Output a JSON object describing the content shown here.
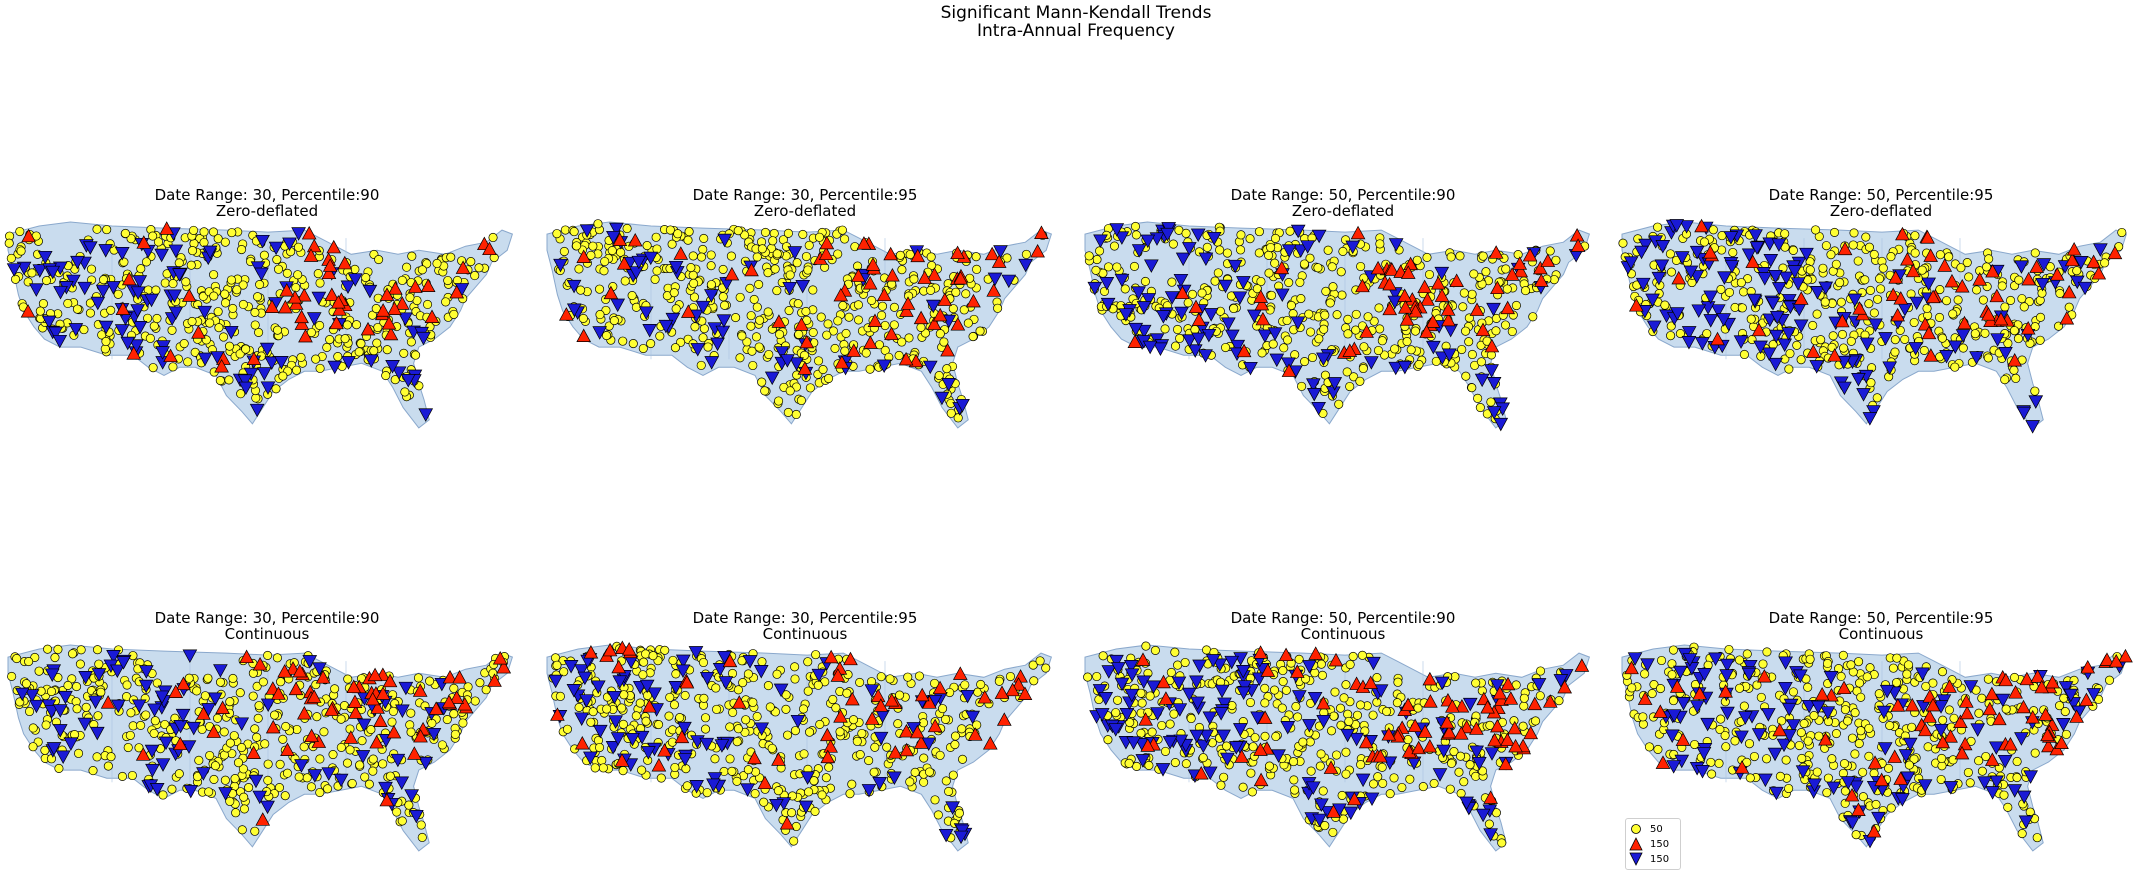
{
  "figure": {
    "title_line1": "Significant Mann-Kendall Trends",
    "title_line2": "Intra-Annual Frequency"
  },
  "colors": {
    "land_fill": "#c9dcee",
    "land_edge": "#8aa8cc",
    "no_trend": "#ffff33",
    "increasing": "#ff2200",
    "decreasing": "#1a1ad6",
    "marker_edge": "#000000"
  },
  "panels": [
    {
      "id": "dr30-p90-zd",
      "title_line1": "Date Range: 30, Percentile:90",
      "title_line2": "Zero-deflated",
      "seed": 11,
      "blue_share": 0.22,
      "red_share": 0.18
    },
    {
      "id": "dr30-p95-zd",
      "title_line1": "Date Range: 30, Percentile:95",
      "title_line2": "Zero-deflated",
      "seed": 23,
      "blue_share": 0.2,
      "red_share": 0.2
    },
    {
      "id": "dr50-p90-zd",
      "title_line1": "Date Range: 50, Percentile:90",
      "title_line2": "Zero-deflated",
      "seed": 37,
      "blue_share": 0.3,
      "red_share": 0.22
    },
    {
      "id": "dr50-p95-zd",
      "title_line1": "Date Range: 50, Percentile:95",
      "title_line2": "Zero-deflated",
      "seed": 41,
      "blue_share": 0.3,
      "red_share": 0.22
    },
    {
      "id": "dr30-p90-c",
      "title_line1": "Date Range: 30, Percentile:90",
      "title_line2": "Continuous",
      "seed": 53,
      "blue_share": 0.24,
      "red_share": 0.2
    },
    {
      "id": "dr30-p95-c",
      "title_line1": "Date Range: 30, Percentile:95",
      "title_line2": "Continuous",
      "seed": 67,
      "blue_share": 0.24,
      "red_share": 0.2
    },
    {
      "id": "dr50-p90-c",
      "title_line1": "Date Range: 50, Percentile:90",
      "title_line2": "Continuous",
      "seed": 79,
      "blue_share": 0.32,
      "red_share": 0.22
    },
    {
      "id": "dr50-p95-c",
      "title_line1": "Date Range: 50, Percentile:95",
      "title_line2": "Continuous",
      "seed": 83,
      "blue_share": 0.3,
      "red_share": 0.22
    }
  ],
  "legend": {
    "items": [
      {
        "marker": "circle",
        "color": "#ffff33",
        "label": "50"
      },
      {
        "marker": "triangle-up",
        "color": "#ff2200",
        "label": "150"
      },
      {
        "marker": "triangle-down",
        "color": "#1a1ad6",
        "label": "150"
      }
    ]
  }
}
